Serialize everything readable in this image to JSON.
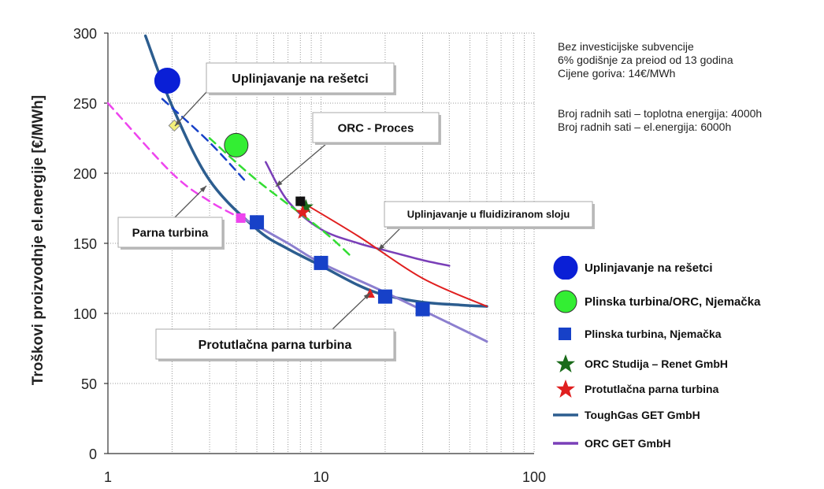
{
  "chart_data": {
    "type": "scatter",
    "xscale": "log",
    "xlim": [
      1,
      100
    ],
    "ylim": [
      0,
      300
    ],
    "xticks": [
      "1",
      "10",
      "100"
    ],
    "yticks": [
      "0",
      "50",
      "100",
      "150",
      "200",
      "250",
      "300"
    ],
    "ylabel": "Troškovi proizvodnje el.energije [€/MWh]",
    "xlabel": "",
    "grid": "dotted",
    "notes": [
      "Bez investicijske subvencije",
      "6% godišnje za preiod od 13 godina",
      "Cijene goriva: 14€/MWh",
      "Broj radnih sati – toplotna energija: 4000h",
      "Broj radnih sati – el.energija: 6000h"
    ],
    "callouts": {
      "grate": "Uplinjavanje na rešetci",
      "orc": "ORC - Proces",
      "steam": "Parna turbina",
      "fluid": "Uplinjavanje u fluidiziranom sloju",
      "backpressure": "Protutlačna parna turbina"
    },
    "legend": [
      {
        "label": "Uplinjavanje na rešetci",
        "symbol": "circle",
        "color": "#0a1fd6"
      },
      {
        "label": "Plinska turbina/ORC, Njemačka",
        "symbol": "circle",
        "color": "#33ee33"
      },
      {
        "label": "Plinska turbina, Njemačka",
        "symbol": "square",
        "color": "#1741c8"
      },
      {
        "label": "ORC Studija – Renet GmbH",
        "symbol": "star",
        "color": "#1a6b1a"
      },
      {
        "label": "Protutlačna parna turbina",
        "symbol": "star",
        "color": "#e01f1f"
      },
      {
        "label": "ToughGas GET GmbH",
        "symbol": "line",
        "color": "#2c5d8f"
      },
      {
        "label": "ORC GET GmbH",
        "symbol": "line",
        "color": "#7a3fb8"
      }
    ],
    "series": [
      {
        "name": "Uplinjavanje na rešetci",
        "kind": "circle",
        "color": "#0a1fd6",
        "points": [
          [
            1.9,
            266
          ]
        ]
      },
      {
        "name": "Plinska turbina/ORC, Njemačka",
        "kind": "circle",
        "color": "#33ee33",
        "points": [
          [
            4.0,
            220
          ]
        ]
      },
      {
        "name": "Plinska turbina, Njemačka",
        "kind": "square",
        "color": "#1741c8",
        "points": [
          [
            5,
            165
          ],
          [
            10,
            136
          ],
          [
            20,
            112
          ],
          [
            30,
            103
          ]
        ]
      },
      {
        "name": "ORC Studija – Renet GmbH",
        "kind": "star",
        "color": "#1a6b1a",
        "points": [
          [
            8.5,
            176
          ]
        ]
      },
      {
        "name": "Protutlačna parna turbina",
        "kind": "star",
        "color": "#e01f1f",
        "points": [
          [
            8.2,
            172
          ]
        ]
      },
      {
        "name": "black-square",
        "kind": "smallsquare",
        "color": "#111111",
        "points": [
          [
            8.0,
            180
          ]
        ]
      },
      {
        "name": "yellow-diamond",
        "kind": "diamond",
        "color": "#f4f07a",
        "points": [
          [
            2.05,
            234
          ]
        ]
      },
      {
        "name": "magenta-square",
        "kind": "smallsquare",
        "color": "#ee44ee",
        "points": [
          [
            4.2,
            168
          ]
        ]
      },
      {
        "name": "red-triangle",
        "kind": "triangle",
        "color": "#e01f1f",
        "points": [
          [
            17,
            114
          ]
        ]
      },
      {
        "name": "ToughGas GET GmbH",
        "kind": "line",
        "color": "#2c5d8f",
        "width": 3.5,
        "dash": "",
        "points": [
          [
            1.5,
            298
          ],
          [
            2,
            248
          ],
          [
            3,
            195
          ],
          [
            5,
            160
          ],
          [
            7,
            146
          ],
          [
            10,
            134
          ],
          [
            15,
            120
          ],
          [
            20,
            113
          ],
          [
            30,
            108
          ],
          [
            45,
            106
          ],
          [
            60,
            105
          ]
        ]
      },
      {
        "name": "ORC GET GmbH",
        "kind": "line",
        "color": "#7a3fb8",
        "width": 2.5,
        "dash": "",
        "points": [
          [
            5.5,
            208
          ],
          [
            7,
            180
          ],
          [
            10,
            160
          ],
          [
            15,
            150
          ],
          [
            20,
            145
          ],
          [
            30,
            138
          ],
          [
            40,
            134
          ]
        ]
      },
      {
        "name": "red-line",
        "kind": "line",
        "color": "#e01f1f",
        "width": 2,
        "dash": "",
        "points": [
          [
            8,
            180
          ],
          [
            15,
            155
          ],
          [
            30,
            125
          ],
          [
            60,
            105
          ]
        ]
      },
      {
        "name": "lavender-line",
        "kind": "line",
        "color": "#8c7fcf",
        "width": 3,
        "dash": "",
        "points": [
          [
            4.3,
            168
          ],
          [
            7,
            150
          ],
          [
            10,
            136
          ],
          [
            20,
            115
          ],
          [
            40,
            93
          ],
          [
            60,
            80
          ]
        ]
      },
      {
        "name": "magenta-dash",
        "kind": "line",
        "color": "#ee44ee",
        "width": 2.5,
        "dash": "10,7",
        "points": [
          [
            1,
            250
          ],
          [
            2,
            200
          ],
          [
            3,
            180
          ],
          [
            4.2,
            168
          ]
        ]
      },
      {
        "name": "blue-dash",
        "kind": "line",
        "color": "#1741c8",
        "width": 2.5,
        "dash": "10,7",
        "points": [
          [
            1.8,
            253
          ],
          [
            3,
            222
          ],
          [
            4.5,
            193
          ]
        ]
      },
      {
        "name": "green-dash",
        "kind": "line",
        "color": "#33dd33",
        "width": 2.5,
        "dash": "10,7",
        "points": [
          [
            3,
            225
          ],
          [
            5,
            195
          ],
          [
            10,
            160
          ],
          [
            14,
            140
          ]
        ]
      }
    ]
  }
}
